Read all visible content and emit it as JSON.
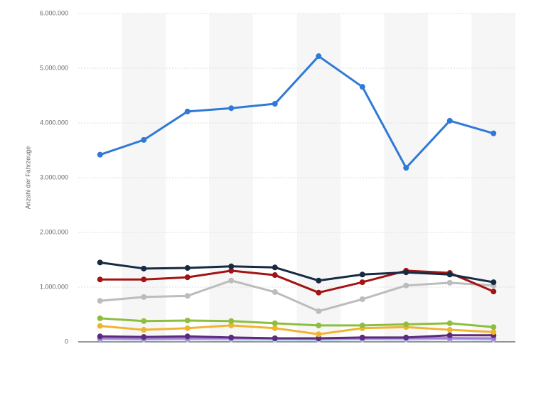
{
  "chart_data": {
    "type": "line",
    "y_label": "Anzahl der Fahrzeuge",
    "categories": [
      null,
      null,
      null,
      null,
      null,
      null,
      null,
      null,
      null,
      null
    ],
    "ylim": [
      0,
      6000000
    ],
    "yticks": [
      {
        "value": 0,
        "label": "0"
      },
      {
        "value": 1000000,
        "label": "1.000.000"
      },
      {
        "value": 2000000,
        "label": "2.000.000"
      },
      {
        "value": 3000000,
        "label": "3.000.000"
      },
      {
        "value": 4000000,
        "label": "4.000.000"
      },
      {
        "value": 5000000,
        "label": "5.000.000"
      },
      {
        "value": 6000000,
        "label": "6.000.000"
      }
    ],
    "grid": true,
    "series": [
      {
        "color": "#2f7ad6",
        "values": [
          3420000,
          3690000,
          4210000,
          4270000,
          4350000,
          5220000,
          4660000,
          3180000,
          4040000,
          3810000
        ]
      },
      {
        "color": "#162a44",
        "values": [
          1450000,
          1340000,
          1350000,
          1380000,
          1360000,
          1120000,
          1230000,
          1270000,
          1230000,
          1090000
        ]
      },
      {
        "color": "#a31313",
        "values": [
          1140000,
          1140000,
          1180000,
          1300000,
          1220000,
          900000,
          1090000,
          1300000,
          1260000,
          920000
        ]
      },
      {
        "color": "#bcbcbc",
        "values": [
          750000,
          820000,
          840000,
          1120000,
          910000,
          560000,
          780000,
          1030000,
          1080000,
          1030000
        ]
      },
      {
        "color": "#8dbf3e",
        "values": [
          430000,
          380000,
          390000,
          380000,
          340000,
          300000,
          300000,
          320000,
          340000,
          270000
        ]
      },
      {
        "color": "#f1b431",
        "values": [
          290000,
          220000,
          250000,
          300000,
          250000,
          140000,
          250000,
          270000,
          220000,
          180000
        ]
      },
      {
        "color": "#5b2c7c",
        "values": [
          100000,
          90000,
          100000,
          80000,
          65000,
          65000,
          80000,
          80000,
          120000,
          120000
        ]
      },
      {
        "color": "#a77fd8",
        "values": [
          65000,
          60000,
          65000,
          70000,
          65000,
          60000,
          65000,
          70000,
          70000,
          65000
        ]
      },
      {
        "color": "#9ec5ea",
        "values": [
          50000,
          45000,
          45000,
          45000,
          40000,
          40000,
          45000,
          45000,
          50000,
          45000
        ]
      }
    ]
  }
}
